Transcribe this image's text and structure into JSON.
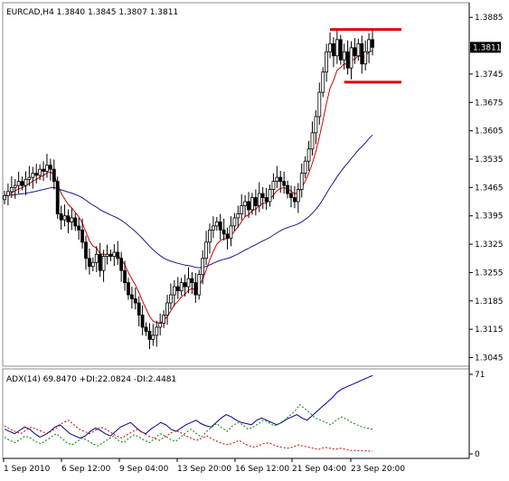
{
  "symbol_header": "EURCAD,H4  1.3840 1.3845 1.3807 1.3811",
  "current_price_label": "1.3811",
  "chart_data": [
    {
      "type": "candlestick",
      "title": "EURCAD,H4  1.3840 1.3845 1.3807 1.3811",
      "ylim": [
        1.3035,
        1.391
      ],
      "y_ticks": [
        "1.3885",
        "1.3745",
        "1.3675",
        "1.3605",
        "1.3535",
        "1.3465",
        "1.3395",
        "1.3325",
        "1.3255",
        "1.3185",
        "1.3115",
        "1.3045"
      ],
      "y_tick_values": [
        1.3885,
        1.3745,
        1.3675,
        1.3605,
        1.3535,
        1.3465,
        1.3395,
        1.3325,
        1.3255,
        1.3185,
        1.3115,
        1.3045
      ],
      "current_price": 1.3811,
      "close_series": [
        1.3445,
        1.3455,
        1.3465,
        1.347,
        1.348,
        1.347,
        1.3485,
        1.349,
        1.35,
        1.3495,
        1.351,
        1.3505,
        1.352,
        1.351,
        1.348,
        1.34,
        1.3385,
        1.3395,
        1.338,
        1.339,
        1.337,
        1.336,
        1.333,
        1.329,
        1.327,
        1.328,
        1.33,
        1.326,
        1.3295,
        1.33,
        1.3295,
        1.3305,
        1.329,
        1.326,
        1.323,
        1.32,
        1.319,
        1.318,
        1.315,
        1.312,
        1.311,
        1.309,
        1.31,
        1.312,
        1.313,
        1.315,
        1.318,
        1.32,
        1.322,
        1.321,
        1.323,
        1.322,
        1.324,
        1.323,
        1.32,
        1.325,
        1.329,
        1.333,
        1.336,
        1.337,
        1.338,
        1.336,
        1.335,
        1.334,
        1.337,
        1.339,
        1.34,
        1.342,
        1.343,
        1.341,
        1.344,
        1.342,
        1.345,
        1.344,
        1.343,
        1.346,
        1.348,
        1.349,
        1.348,
        1.347,
        1.345,
        1.344,
        1.343,
        1.346,
        1.35,
        1.353,
        1.356,
        1.36,
        1.364,
        1.37,
        1.375,
        1.38,
        1.382,
        1.379,
        1.383,
        1.378,
        1.38,
        1.376,
        1.381,
        1.379,
        1.382,
        1.377,
        1.38,
        1.383,
        1.3811
      ],
      "resistance_level": 1.3855,
      "support_level": 1.3725,
      "moving_averages": [
        {
          "color": "#d40000",
          "period": "fast"
        },
        {
          "color": "#1a1a8c",
          "period": "slow"
        }
      ],
      "x_ticks": [
        "1 Sep 2010",
        "6 Sep 12:00",
        "9 Sep 04:00",
        "13 Sep 20:00",
        "16 Sep 12:00",
        "21 Sep 04:00",
        "23 Sep 20:00"
      ]
    },
    {
      "type": "line",
      "title": "ADX(14) 69.8470 +DI:22.0824 -DI:2.4481",
      "ylim": [
        0,
        71
      ],
      "y_ticks": [
        "71",
        "0"
      ],
      "y_tick_values": [
        71,
        0
      ],
      "series": [
        {
          "color": "#00008b",
          "style": "solid",
          "values": [
            22,
            20,
            18,
            21,
            24,
            22,
            18,
            15,
            17,
            20,
            24,
            26,
            22,
            18,
            16,
            14,
            16,
            20,
            23,
            21,
            18,
            16,
            20,
            24,
            26,
            28,
            24,
            20,
            18,
            22,
            25,
            28,
            26,
            22,
            20,
            23,
            26,
            28,
            30,
            27,
            25,
            24,
            28,
            32,
            35,
            33,
            30,
            28,
            27,
            26,
            30,
            32,
            30,
            28,
            26,
            28,
            31,
            33,
            35,
            32,
            30,
            34,
            38,
            42,
            46,
            50,
            55,
            58,
            60,
            62,
            64,
            66,
            68,
            69.847
          ]
        },
        {
          "color": "#008000",
          "style": "dashed",
          "values": [
            15,
            12,
            10,
            13,
            16,
            14,
            11,
            9,
            12,
            15,
            18,
            14,
            10,
            8,
            11,
            14,
            12,
            9,
            7,
            10,
            13,
            16,
            12,
            10,
            14,
            17,
            15,
            12,
            10,
            14,
            18,
            16,
            13,
            11,
            15,
            19,
            22,
            18,
            15,
            20,
            24,
            27,
            23,
            20,
            25,
            28,
            26,
            22,
            24,
            27,
            30,
            28,
            25,
            27,
            30,
            34,
            38,
            44,
            40,
            36,
            32,
            30,
            28,
            26,
            30,
            33,
            31,
            28,
            26,
            24,
            23,
            22.0824
          ]
        },
        {
          "color": "#d40000",
          "style": "dashed",
          "values": [
            25,
            22,
            20,
            18,
            21,
            24,
            22,
            20,
            18,
            21,
            24,
            28,
            30,
            26,
            22,
            20,
            18,
            21,
            24,
            22,
            19,
            16,
            14,
            17,
            20,
            22,
            19,
            16,
            14,
            12,
            15,
            18,
            21,
            19,
            16,
            14,
            12,
            14,
            16,
            13,
            11,
            9,
            8,
            10,
            12,
            9,
            7,
            6,
            8,
            10,
            9,
            7,
            6,
            5,
            6,
            8,
            7,
            6,
            5,
            4,
            6,
            5,
            4,
            5,
            4,
            3,
            3,
            2.8,
            2.6,
            2.4481
          ]
        }
      ],
      "x_ticks": [
        "1 Sep 2010",
        "6 Sep 12:00",
        "9 Sep 04:00",
        "13 Sep 20:00",
        "16 Sep 12:00",
        "21 Sep 04:00",
        "23 Sep 20:00"
      ]
    }
  ]
}
